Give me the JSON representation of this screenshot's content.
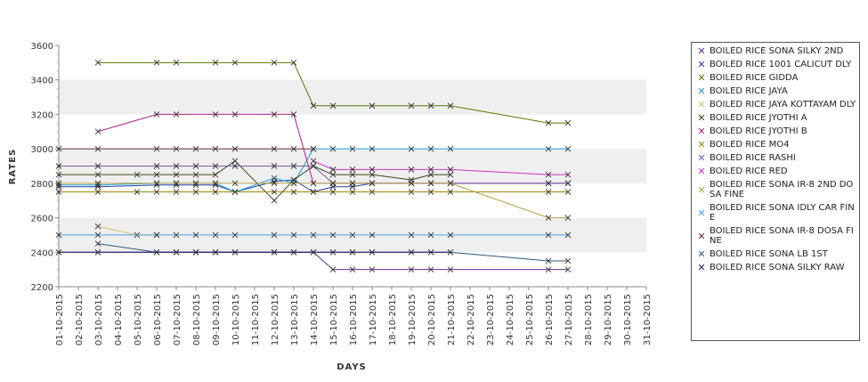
{
  "chart_data": {
    "type": "line",
    "title": "",
    "xlabel": "DAYS",
    "ylabel": "RATES",
    "ylim": [
      2200,
      3600
    ],
    "yticks": [
      2200,
      2400,
      2600,
      2800,
      3000,
      3200,
      3400,
      3600
    ],
    "grid": "alternating horizontal bands",
    "legend_position": "right",
    "categories": [
      "01-10-2015",
      "02-10-2015",
      "03-10-2015",
      "04-10-2015",
      "05-10-2015",
      "06-10-2015",
      "07-10-2015",
      "08-10-2015",
      "09-10-2015",
      "10-10-2015",
      "11-10-2015",
      "12-10-2015",
      "13-10-2015",
      "14-10-2015",
      "15-10-2015",
      "16-10-2015",
      "17-10-2015",
      "18-10-2015",
      "19-10-2015",
      "20-10-2015",
      "21-10-2015",
      "22-10-2015",
      "23-10-2015",
      "24-10-2015",
      "25-10-2015",
      "26-10-2015",
      "27-10-2015",
      "28-10-2015",
      "29-10-2015",
      "30-10-2015",
      "31-10-2015"
    ],
    "series": [
      {
        "name": "BOILED RICE SONA SILKY 2ND",
        "color": "#6b2a8a",
        "points": [
          [
            "01-10-2015",
            2400
          ],
          [
            "03-10-2015",
            2400
          ],
          [
            "06-10-2015",
            2400
          ],
          [
            "07-10-2015",
            2400
          ],
          [
            "08-10-2015",
            2400
          ],
          [
            "09-10-2015",
            2400
          ],
          [
            "10-10-2015",
            2400
          ],
          [
            "12-10-2015",
            2400
          ],
          [
            "13-10-2015",
            2400
          ],
          [
            "14-10-2015",
            2400
          ],
          [
            "15-10-2015",
            2300
          ],
          [
            "16-10-2015",
            2300
          ],
          [
            "17-10-2015",
            2300
          ],
          [
            "19-10-2015",
            2300
          ],
          [
            "20-10-2015",
            2300
          ],
          [
            "21-10-2015",
            2300
          ],
          [
            "26-10-2015",
            2300
          ],
          [
            "27-10-2015",
            2300
          ]
        ]
      },
      {
        "name": "BOILED RICE 1001 CALICUT DLY",
        "color": "#1f3fa8",
        "points": [
          [
            "01-10-2015",
            2780
          ],
          [
            "03-10-2015",
            2780
          ],
          [
            "06-10-2015",
            2790
          ],
          [
            "07-10-2015",
            2790
          ],
          [
            "08-10-2015",
            2790
          ],
          [
            "09-10-2015",
            2790
          ],
          [
            "10-10-2015",
            2750
          ],
          [
            "12-10-2015",
            2810
          ],
          [
            "13-10-2015",
            2820
          ],
          [
            "14-10-2015",
            2750
          ],
          [
            "15-10-2015",
            2780
          ],
          [
            "16-10-2015",
            2780
          ],
          [
            "17-10-2015",
            2800
          ],
          [
            "19-10-2015",
            2800
          ],
          [
            "20-10-2015",
            2800
          ],
          [
            "21-10-2015",
            2800
          ],
          [
            "26-10-2015",
            2800
          ],
          [
            "27-10-2015",
            2800
          ]
        ]
      },
      {
        "name": "BOILED RICE GIDDA",
        "color": "#5a7a00",
        "points": [
          [
            "03-10-2015",
            3500
          ],
          [
            "06-10-2015",
            3500
          ],
          [
            "07-10-2015",
            3500
          ],
          [
            "09-10-2015",
            3500
          ],
          [
            "10-10-2015",
            3500
          ],
          [
            "12-10-2015",
            3500
          ],
          [
            "13-10-2015",
            3500
          ],
          [
            "14-10-2015",
            3250
          ],
          [
            "15-10-2015",
            3250
          ],
          [
            "17-10-2015",
            3250
          ],
          [
            "19-10-2015",
            3250
          ],
          [
            "20-10-2015",
            3250
          ],
          [
            "21-10-2015",
            3250
          ],
          [
            "26-10-2015",
            3150
          ],
          [
            "27-10-2015",
            3150
          ]
        ]
      },
      {
        "name": "BOILED RICE JAYA",
        "color": "#1a9ad6",
        "points": [
          [
            "01-10-2015",
            2790
          ],
          [
            "03-10-2015",
            2790
          ],
          [
            "06-10-2015",
            2800
          ],
          [
            "07-10-2015",
            2800
          ],
          [
            "08-10-2015",
            2800
          ],
          [
            "09-10-2015",
            2800
          ],
          [
            "10-10-2015",
            2750
          ],
          [
            "12-10-2015",
            2830
          ],
          [
            "13-10-2015",
            2800
          ],
          [
            "14-10-2015",
            3000
          ],
          [
            "15-10-2015",
            3000
          ],
          [
            "16-10-2015",
            3000
          ],
          [
            "17-10-2015",
            3000
          ],
          [
            "19-10-2015",
            3000
          ],
          [
            "20-10-2015",
            3000
          ],
          [
            "21-10-2015",
            3000
          ],
          [
            "26-10-2015",
            3000
          ],
          [
            "27-10-2015",
            3000
          ]
        ]
      },
      {
        "name": "BOILED RICE JAYA KOTTAYAM DLY",
        "color": "#d8c060",
        "points": [
          [
            "03-10-2015",
            2550
          ],
          [
            "05-10-2015",
            2500
          ],
          [
            "06-10-2015",
            2500
          ]
        ]
      },
      {
        "name": "BOILED RICE JYOTHI A",
        "color": "#3a4a10",
        "points": [
          [
            "01-10-2015",
            2850
          ],
          [
            "03-10-2015",
            2850
          ],
          [
            "05-10-2015",
            2850
          ],
          [
            "06-10-2015",
            2850
          ],
          [
            "07-10-2015",
            2850
          ],
          [
            "08-10-2015",
            2850
          ],
          [
            "09-10-2015",
            2850
          ],
          [
            "10-10-2015",
            2930
          ],
          [
            "12-10-2015",
            2700
          ],
          [
            "13-10-2015",
            2820
          ],
          [
            "14-10-2015",
            2900
          ],
          [
            "15-10-2015",
            2850
          ],
          [
            "16-10-2015",
            2850
          ],
          [
            "17-10-2015",
            2850
          ],
          [
            "19-10-2015",
            2820
          ],
          [
            "20-10-2015",
            2850
          ],
          [
            "21-10-2015",
            2850
          ]
        ]
      },
      {
        "name": "BOILED RICE JYOTHI B",
        "color": "#b0208a",
        "points": [
          [
            "03-10-2015",
            3100
          ],
          [
            "06-10-2015",
            3200
          ],
          [
            "07-10-2015",
            3200
          ],
          [
            "09-10-2015",
            3200
          ],
          [
            "10-10-2015",
            3200
          ],
          [
            "12-10-2015",
            3200
          ],
          [
            "13-10-2015",
            3200
          ],
          [
            "14-10-2015",
            2800
          ],
          [
            "15-10-2015",
            2800
          ],
          [
            "16-10-2015",
            2800
          ],
          [
            "17-10-2015",
            2800
          ],
          [
            "19-10-2015",
            2800
          ],
          [
            "20-10-2015",
            2800
          ],
          [
            "21-10-2015",
            2800
          ],
          [
            "26-10-2015",
            2800
          ],
          [
            "27-10-2015",
            2800
          ]
        ]
      },
      {
        "name": "BOILED RICE MO4",
        "color": "#a88400",
        "points": [
          [
            "01-10-2015",
            2750
          ],
          [
            "03-10-2015",
            2750
          ],
          [
            "05-10-2015",
            2750
          ],
          [
            "06-10-2015",
            2750
          ],
          [
            "07-10-2015",
            2750
          ],
          [
            "08-10-2015",
            2750
          ],
          [
            "09-10-2015",
            2750
          ],
          [
            "10-10-2015",
            2750
          ],
          [
            "12-10-2015",
            2750
          ],
          [
            "13-10-2015",
            2750
          ],
          [
            "14-10-2015",
            2750
          ],
          [
            "15-10-2015",
            2750
          ],
          [
            "16-10-2015",
            2750
          ],
          [
            "17-10-2015",
            2750
          ],
          [
            "19-10-2015",
            2750
          ],
          [
            "20-10-2015",
            2750
          ],
          [
            "21-10-2015",
            2750
          ],
          [
            "26-10-2015",
            2750
          ],
          [
            "27-10-2015",
            2750
          ]
        ]
      },
      {
        "name": "BOILED RICE RASHI",
        "color": "#7a5ca8",
        "points": [
          [
            "01-10-2015",
            2900
          ],
          [
            "03-10-2015",
            2900
          ],
          [
            "06-10-2015",
            2900
          ],
          [
            "07-10-2015",
            2900
          ],
          [
            "08-10-2015",
            2900
          ],
          [
            "09-10-2015",
            2900
          ],
          [
            "10-10-2015",
            2900
          ],
          [
            "12-10-2015",
            2900
          ],
          [
            "13-10-2015",
            2900
          ],
          [
            "14-10-2015",
            2900
          ],
          [
            "15-10-2015",
            2800
          ],
          [
            "16-10-2015",
            2800
          ],
          [
            "17-10-2015",
            2800
          ],
          [
            "19-10-2015",
            2800
          ],
          [
            "20-10-2015",
            2800
          ],
          [
            "21-10-2015",
            2800
          ],
          [
            "26-10-2015",
            2800
          ],
          [
            "27-10-2015",
            2800
          ]
        ]
      },
      {
        "name": "BOILED RICE RED",
        "color": "#d030c0",
        "points": [
          [
            "14-10-2015",
            2930
          ],
          [
            "15-10-2015",
            2880
          ],
          [
            "16-10-2015",
            2880
          ],
          [
            "17-10-2015",
            2880
          ],
          [
            "19-10-2015",
            2880
          ],
          [
            "20-10-2015",
            2880
          ],
          [
            "21-10-2015",
            2880
          ],
          [
            "26-10-2015",
            2850
          ],
          [
            "27-10-2015",
            2850
          ]
        ]
      },
      {
        "name": "BOILED RICE SONA IR-8 2ND DOSA FINE",
        "color": "#b8a040",
        "points": [
          [
            "01-10-2015",
            2800
          ],
          [
            "03-10-2015",
            2800
          ],
          [
            "06-10-2015",
            2800
          ],
          [
            "07-10-2015",
            2800
          ],
          [
            "08-10-2015",
            2800
          ],
          [
            "09-10-2015",
            2800
          ],
          [
            "10-10-2015",
            2800
          ],
          [
            "12-10-2015",
            2800
          ],
          [
            "13-10-2015",
            2800
          ],
          [
            "14-10-2015",
            2800
          ],
          [
            "15-10-2015",
            2800
          ],
          [
            "16-10-2015",
            2800
          ],
          [
            "17-10-2015",
            2800
          ],
          [
            "19-10-2015",
            2800
          ],
          [
            "20-10-2015",
            2800
          ],
          [
            "21-10-2015",
            2800
          ],
          [
            "26-10-2015",
            2600
          ],
          [
            "27-10-2015",
            2600
          ]
        ]
      },
      {
        "name": "BOILED RICE SONA IDLY CAR FINE",
        "color": "#4aa0e0",
        "points": [
          [
            "01-10-2015",
            2500
          ],
          [
            "03-10-2015",
            2500
          ],
          [
            "06-10-2015",
            2500
          ],
          [
            "07-10-2015",
            2500
          ],
          [
            "08-10-2015",
            2500
          ],
          [
            "09-10-2015",
            2500
          ],
          [
            "10-10-2015",
            2500
          ],
          [
            "12-10-2015",
            2500
          ],
          [
            "13-10-2015",
            2500
          ],
          [
            "14-10-2015",
            2500
          ],
          [
            "15-10-2015",
            2500
          ],
          [
            "16-10-2015",
            2500
          ],
          [
            "17-10-2015",
            2500
          ],
          [
            "19-10-2015",
            2500
          ],
          [
            "20-10-2015",
            2500
          ],
          [
            "21-10-2015",
            2500
          ],
          [
            "26-10-2015",
            2500
          ],
          [
            "27-10-2015",
            2500
          ]
        ]
      },
      {
        "name": "BOILED RICE SONA IR-8 DOSA FINE",
        "color": "#6a2a2a",
        "points": [
          [
            "01-10-2015",
            3000
          ],
          [
            "03-10-2015",
            3000
          ],
          [
            "06-10-2015",
            3000
          ],
          [
            "07-10-2015",
            3000
          ],
          [
            "08-10-2015",
            3000
          ],
          [
            "09-10-2015",
            3000
          ],
          [
            "10-10-2015",
            3000
          ],
          [
            "12-10-2015",
            3000
          ],
          [
            "13-10-2015",
            3000
          ],
          [
            "14-10-2015",
            3000
          ]
        ]
      },
      {
        "name": "BOILED RICE SONA LB 1ST",
        "color": "#2a5a7a",
        "points": [
          [
            "03-10-2015",
            2450
          ],
          [
            "06-10-2015",
            2400
          ],
          [
            "07-10-2015",
            2400
          ],
          [
            "08-10-2015",
            2400
          ],
          [
            "09-10-2015",
            2400
          ],
          [
            "10-10-2015",
            2400
          ],
          [
            "12-10-2015",
            2400
          ],
          [
            "13-10-2015",
            2400
          ],
          [
            "14-10-2015",
            2400
          ],
          [
            "15-10-2015",
            2400
          ],
          [
            "16-10-2015",
            2400
          ],
          [
            "17-10-2015",
            2400
          ],
          [
            "19-10-2015",
            2400
          ],
          [
            "20-10-2015",
            2400
          ],
          [
            "21-10-2015",
            2400
          ],
          [
            "26-10-2015",
            2350
          ],
          [
            "27-10-2015",
            2350
          ]
        ]
      },
      {
        "name": "BOILED RICE SONA SILKY RAW",
        "color": "#1a1a6a",
        "points": [
          [
            "01-10-2015",
            2400
          ],
          [
            "03-10-2015",
            2400
          ],
          [
            "06-10-2015",
            2400
          ],
          [
            "07-10-2015",
            2400
          ],
          [
            "08-10-2015",
            2400
          ],
          [
            "09-10-2015",
            2400
          ],
          [
            "10-10-2015",
            2400
          ],
          [
            "12-10-2015",
            2400
          ],
          [
            "13-10-2015",
            2400
          ],
          [
            "14-10-2015",
            2400
          ],
          [
            "15-10-2015",
            2400
          ],
          [
            "16-10-2015",
            2400
          ],
          [
            "17-10-2015",
            2400
          ],
          [
            "19-10-2015",
            2400
          ],
          [
            "20-10-2015",
            2400
          ],
          [
            "21-10-2015",
            2400
          ]
        ]
      }
    ]
  },
  "legend": {
    "items": [
      {
        "label": "BOILED RICE SONA SILKY 2ND",
        "color": "#6b2a8a"
      },
      {
        "label": "BOILED RICE 1001 CALICUT DLY",
        "color": "#1f3fa8"
      },
      {
        "label": "BOILED RICE GIDDA",
        "color": "#5a7a00"
      },
      {
        "label": "BOILED RICE JAYA",
        "color": "#1a9ad6"
      },
      {
        "label": "BOILED RICE JAYA KOTTAYAM DLY",
        "color": "#d8c060"
      },
      {
        "label": "BOILED RICE JYOTHI A",
        "color": "#3a4a10"
      },
      {
        "label": "BOILED RICE JYOTHI B",
        "color": "#b0208a"
      },
      {
        "label": "BOILED RICE MO4",
        "color": "#a88400"
      },
      {
        "label": "BOILED RICE RASHI",
        "color": "#7a5ca8"
      },
      {
        "label": "BOILED RICE RED",
        "color": "#d030c0"
      },
      {
        "label": "BOILED RICE SONA IR-8 2ND DOSA FINE",
        "color": "#b8a040"
      },
      {
        "label": "BOILED RICE SONA IDLY CAR FINE",
        "color": "#4aa0e0"
      },
      {
        "label": "BOILED RICE SONA IR-8 DOSA FINE",
        "color": "#6a2a2a"
      },
      {
        "label": "BOILED RICE SONA LB 1ST",
        "color": "#2a5a7a"
      },
      {
        "label": "BOILED RICE SONA SILKY RAW",
        "color": "#1a1a6a"
      }
    ]
  }
}
